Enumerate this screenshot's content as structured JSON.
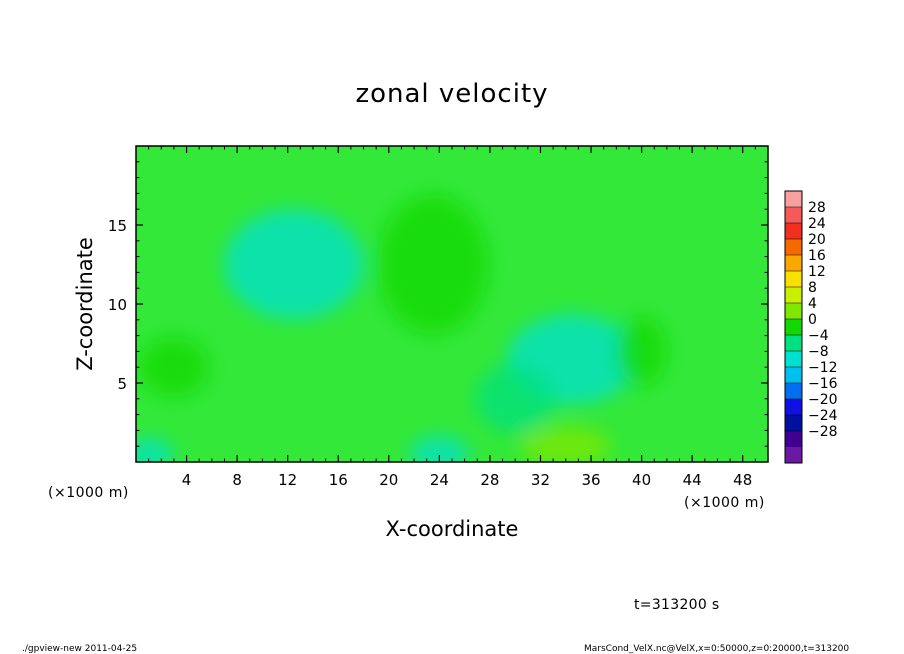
{
  "chart_data": {
    "type": "heatmap",
    "title": "zonal velocity",
    "xlabel": "X-coordinate",
    "ylabel": "Z-coordinate",
    "xunit_left": "(×1000 m)",
    "xunit_right": "(×1000 m)",
    "xlim": [
      0,
      50
    ],
    "ylim": [
      0,
      20
    ],
    "xticks": [
      4,
      8,
      12,
      16,
      20,
      24,
      28,
      32,
      36,
      40,
      44,
      48
    ],
    "yticks": [
      5,
      10,
      15
    ],
    "colorbar": {
      "levels": [
        28,
        24,
        20,
        16,
        12,
        8,
        4,
        0,
        -4,
        -8,
        -12,
        -16,
        -20,
        -24,
        -28
      ],
      "level_labels": [
        "28",
        "24",
        "20",
        "16",
        "12",
        "8",
        "4",
        "0",
        "−4",
        "−8",
        "−12",
        "−16",
        "−20",
        "−24",
        "−28"
      ],
      "colors": [
        "#f7a0a0",
        "#f55a5a",
        "#f03020",
        "#f56a00",
        "#f8a800",
        "#f8e000",
        "#c8f000",
        "#80e800",
        "#10d800",
        "#00e080",
        "#00e0d0",
        "#00c0f0",
        "#0070f0",
        "#1010e0",
        "#0010a0",
        "#400090",
        "#6a1aa0"
      ]
    },
    "field_background": "#33e838",
    "features": [
      {
        "x": 12.5,
        "z": 12.5,
        "value": -5
      },
      {
        "x": 23.5,
        "z": 12.5,
        "value": 3
      },
      {
        "x": 34.5,
        "z": 6.5,
        "value": -5
      },
      {
        "x": 3.0,
        "z": 6.0,
        "value": 3
      },
      {
        "x": 34.0,
        "z": 1.0,
        "value": 6
      },
      {
        "x": 24.0,
        "z": 0.5,
        "value": -8
      },
      {
        "x": 1.0,
        "z": 0.5,
        "value": -6
      },
      {
        "x": 40.0,
        "z": 7.0,
        "value": 2
      },
      {
        "x": 30.0,
        "z": 4.0,
        "value": -3
      }
    ]
  },
  "time_label": "t=313200 s",
  "footer_left": "./gpview-new   2011-04-25",
  "footer_right": "MarsCond_VelX.nc@VelX,x=0:50000,z=0:20000,t=313200"
}
